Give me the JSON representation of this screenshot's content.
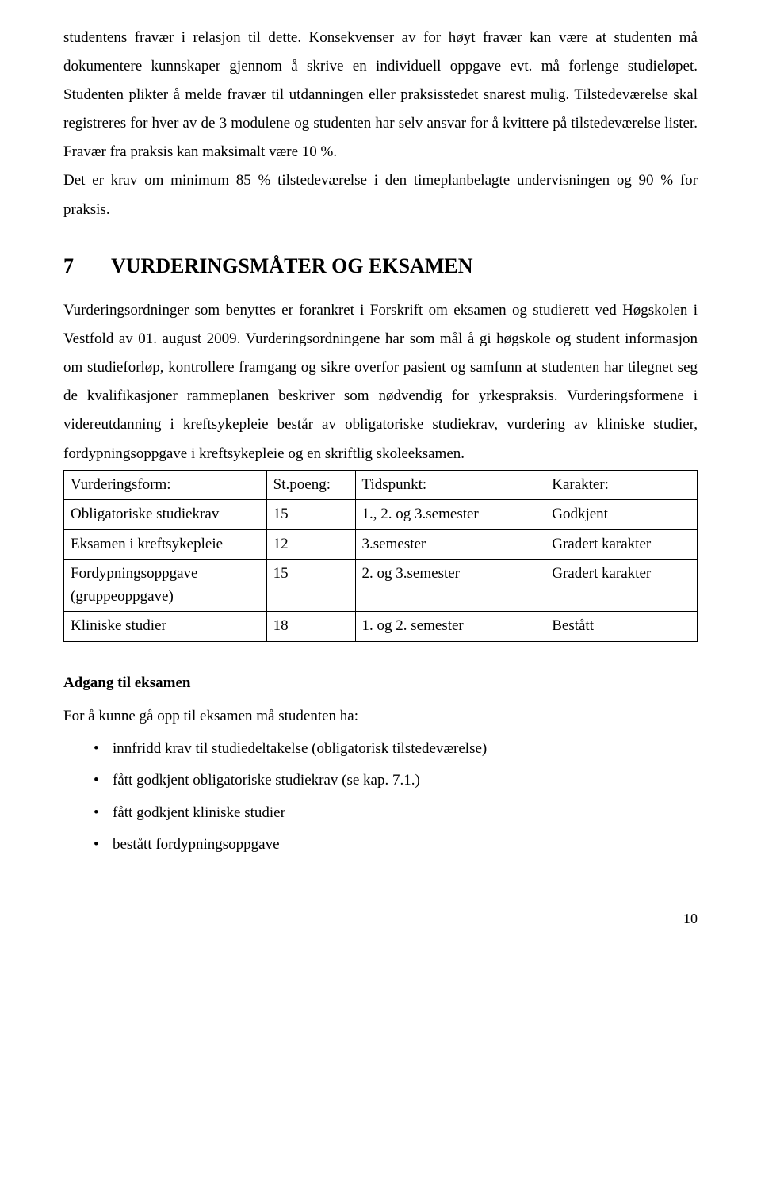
{
  "paragraph1": "studentens fravær i relasjon til dette. Konsekvenser av for høyt fravær kan være at studenten må dokumentere kunnskaper gjennom å skrive en individuell oppgave evt. må forlenge studieløpet. Studenten plikter å melde fravær til utdanningen eller praksisstedet snarest mulig. Tilstedeværelse skal registreres for hver av de 3 modulene og studenten har selv ansvar for å kvittere på tilstedeværelse lister. Fravær fra praksis kan maksimalt være 10 %.",
  "paragraph2": "Det er krav om minimum 85 % tilstedeværelse i den timeplanbelagte undervisningen og 90 % for praksis.",
  "section": {
    "number": "7",
    "title": "VURDERINGSMÅTER OG EKSAMEN"
  },
  "paragraph3": "Vurderingsordninger som benyttes er forankret i Forskrift om eksamen og studierett ved Høgskolen i Vestfold av 01. august 2009. Vurderingsordningene har som mål å gi høgskole og student informasjon om studieforløp, kontrollere framgang og sikre overfor pasient og samfunn at studenten har tilegnet seg de kvalifikasjoner rammeplanen beskriver som nødvendig for yrkespraksis. Vurderingsformene i videreutdanning i kreftsykepleie består av obligatoriske studiekrav, vurdering av kliniske studier, fordypningsoppgave i kreftsykepleie og en skriftlig skoleeksamen.",
  "table": {
    "headers": [
      "Vurderingsform:",
      "St.poeng:",
      "Tidspunkt:",
      "Karakter:"
    ],
    "rows": [
      [
        "Obligatoriske studiekrav",
        "15",
        "1., 2. og 3.semester",
        "Godkjent"
      ],
      [
        "Eksamen i kreftsykepleie",
        "12",
        "3.semester",
        "Gradert karakter"
      ],
      [
        "Fordypningsoppgave (gruppeoppgave)",
        "15",
        "2. og 3.semester",
        "Gradert karakter"
      ],
      [
        "Kliniske studier",
        "18",
        "1. og 2. semester",
        "Bestått"
      ]
    ]
  },
  "subheading": "Adgang til eksamen",
  "introLine": "For å kunne gå opp til eksamen må studenten ha:",
  "bullets": [
    "innfridd krav til studiedeltakelse (obligatorisk tilstedeværelse)",
    "fått godkjent obligatoriske studiekrav (se kap. 7.1.)",
    "fått godkjent kliniske studier",
    "bestått fordypningsoppgave"
  ],
  "pageNumber": "10"
}
